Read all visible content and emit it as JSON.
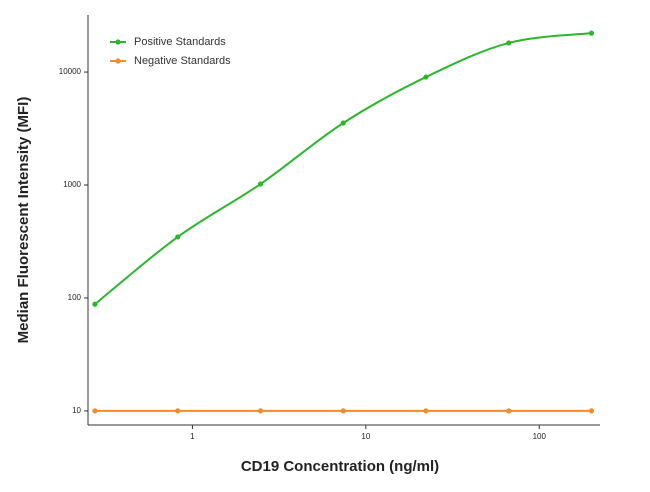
{
  "chart_data": {
    "type": "line",
    "x_label": "CD19 Concentration (ng/ml)",
    "y_label": "Median  Fluorescent Intensity  (MFI)",
    "x": [
      0.274,
      0.823,
      2.47,
      7.41,
      22.2,
      66.7,
      200
    ],
    "series": [
      {
        "name": "Positive Standards",
        "color": "#2db52d",
        "values": [
          88,
          347,
          1020,
          3540,
          9030,
          18100,
          22100
        ]
      },
      {
        "name": "Negative Standards",
        "color": "#f28a2e",
        "values": [
          10,
          10,
          10,
          10,
          10,
          10,
          10
        ]
      }
    ],
    "xscale": "log",
    "yscale": "log",
    "xlim": [
      0.25,
      224
    ],
    "ylim": [
      7.5,
      32000
    ],
    "xticks": [
      1,
      10,
      100
    ],
    "yticks": [
      10,
      100,
      1000,
      10000
    ],
    "legend": "upper left"
  }
}
